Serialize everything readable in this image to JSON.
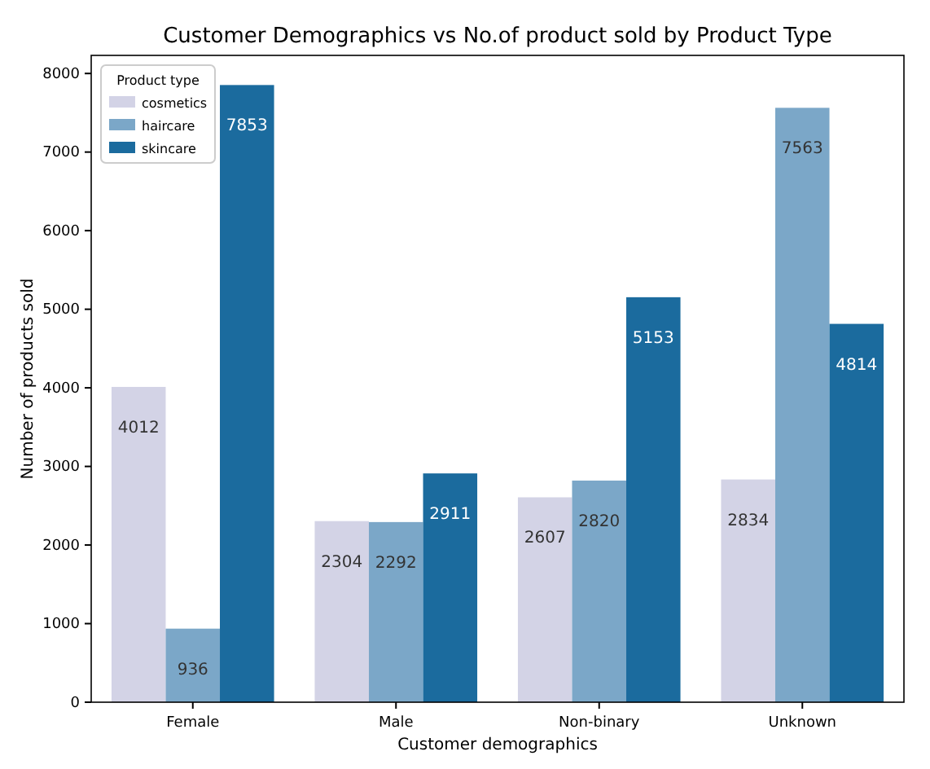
{
  "chart_data": {
    "type": "bar",
    "title": "Customer Demographics vs No.of product sold by Product Type",
    "xlabel": "Customer demographics",
    "ylabel": "Number of products sold",
    "legend_title": "Product type",
    "categories": [
      "Female",
      "Male",
      "Non-binary",
      "Unknown"
    ],
    "series": [
      {
        "name": "cosmetics",
        "color": "#d3d3e6",
        "values": [
          4012,
          2304,
          2607,
          2834
        ]
      },
      {
        "name": "haircare",
        "color": "#7ba7c8",
        "values": [
          936,
          2292,
          2820,
          7563
        ]
      },
      {
        "name": "skincare",
        "color": "#1b6b9e",
        "values": [
          7853,
          2911,
          5153,
          4814
        ]
      }
    ],
    "ylim": [
      0,
      8230
    ],
    "yticks": [
      0,
      1000,
      2000,
      3000,
      4000,
      5000,
      6000,
      7000,
      8000
    ],
    "data_labels": true,
    "legend": "top left",
    "grid": false
  }
}
